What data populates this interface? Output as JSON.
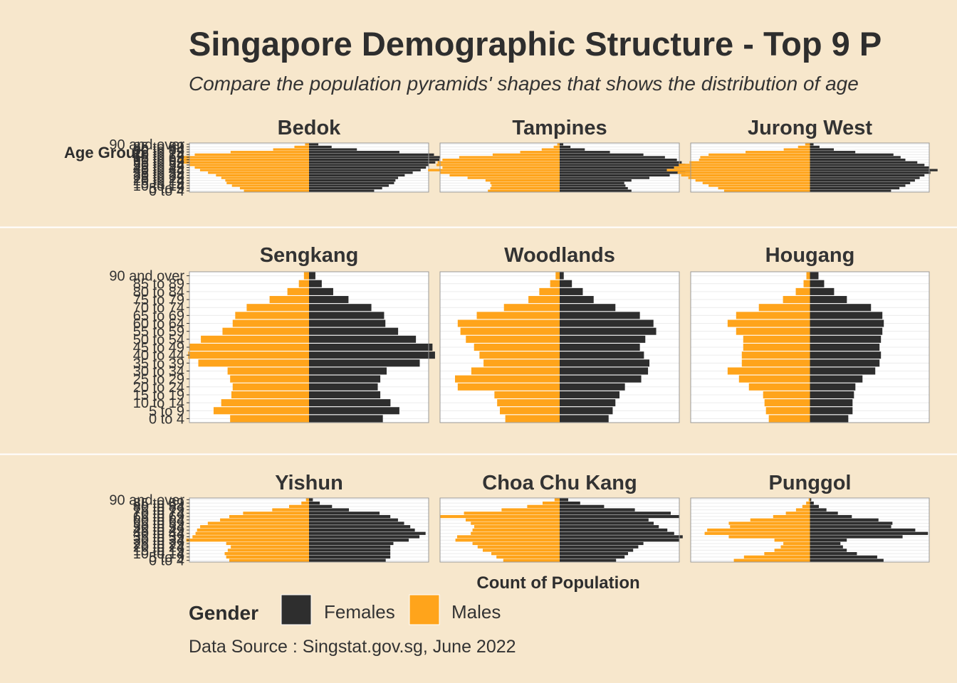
{
  "chart_data": {
    "type": "bar",
    "orientation": "horizontal",
    "subtype": "population-pyramid-facets",
    "title": "Singapore Demographic Structure - Top 9 P",
    "subtitle": "Compare the population pyramids' shapes that shows the distribution of age",
    "ylabel": "Age Group",
    "xlabel": "Count of Population",
    "legend": {
      "title": "Gender",
      "placement": "bottom-left",
      "items": [
        {
          "name": "Females",
          "color": "#2e2e2e"
        },
        {
          "name": "Males",
          "color": "#ffa41b"
        }
      ]
    },
    "caption": "Data Source : Singstat.gov.sg, June 2022",
    "grid": true,
    "categories": [
      "0 to 4",
      "5 to 9",
      "10 to 14",
      "15 to 19",
      "20 to 24",
      "25 to 29",
      "30 to 34",
      "35 to 39",
      "40 to 44",
      "45 to 49",
      "50 to 54",
      "55 to 59",
      "60 to 64",
      "65 to 69",
      "70 to 74",
      "75 to 79",
      "80 to 84",
      "85 to 89",
      "90 and over"
    ],
    "facets": [
      {
        "name": "Bedok",
        "xlim": [
          -9000,
          9000
        ],
        "females": [
          4900,
          5500,
          6000,
          6400,
          6500,
          6700,
          7200,
          7800,
          8400,
          8800,
          9000,
          9500,
          9800,
          10100,
          9400,
          6800,
          3600,
          1700,
          700
        ],
        "males": [
          4900,
          5200,
          5800,
          6200,
          6300,
          6600,
          7000,
          7600,
          8200,
          8600,
          9000,
          9500,
          9700,
          9600,
          8600,
          5900,
          2700,
          1100,
          300
        ]
      },
      {
        "name": "Tampines",
        "xlim": [
          -10000,
          10000
        ],
        "females": [
          6000,
          5700,
          5500,
          5400,
          6000,
          7500,
          9200,
          10500,
          11200,
          10000,
          10500,
          10200,
          9800,
          8800,
          7000,
          4200,
          2100,
          900,
          300
        ],
        "males": [
          6000,
          5800,
          5700,
          5800,
          6200,
          7700,
          9200,
          10000,
          11000,
          9800,
          10300,
          10200,
          9800,
          8400,
          5600,
          3300,
          1500,
          500,
          200
        ]
      },
      {
        "name": "Jurong West",
        "xlim": [
          -10000,
          10000
        ],
        "females": [
          6800,
          7500,
          8000,
          8400,
          8800,
          9200,
          9600,
          10100,
          10700,
          10000,
          9600,
          9000,
          8000,
          7600,
          7000,
          3800,
          2000,
          800,
          300
        ],
        "males": [
          7200,
          7700,
          8500,
          9000,
          9600,
          10200,
          10800,
          11100,
          12000,
          11400,
          11000,
          10100,
          9300,
          9200,
          8500,
          5400,
          2200,
          1000,
          400
        ]
      },
      {
        "name": "Sengkang",
        "xlim": [
          -9400,
          9400
        ],
        "females": [
          5800,
          7100,
          6400,
          5600,
          5400,
          5600,
          6100,
          8700,
          9900,
          9700,
          8400,
          7000,
          6000,
          5900,
          4900,
          3100,
          1900,
          1000,
          500
        ],
        "males": [
          6200,
          7500,
          6900,
          6100,
          6000,
          6200,
          6400,
          8700,
          9500,
          9400,
          8500,
          6800,
          6000,
          5800,
          4900,
          3100,
          1700,
          800,
          400
        ]
      },
      {
        "name": "Woodlands",
        "xlim": [
          -8800,
          8800
        ],
        "females": [
          3600,
          3900,
          4100,
          4400,
          4800,
          6000,
          6500,
          6600,
          6200,
          5900,
          6300,
          7100,
          6900,
          5900,
          4100,
          2500,
          1700,
          900,
          300
        ],
        "males": [
          4000,
          4400,
          4600,
          4800,
          7500,
          7700,
          6500,
          5600,
          5900,
          6300,
          6900,
          7300,
          7500,
          6100,
          4100,
          2300,
          1500,
          700,
          300
        ]
      },
      {
        "name": "Hougang",
        "xlim": [
          -8400,
          8400
        ],
        "females": [
          2700,
          3000,
          3000,
          3100,
          3200,
          3700,
          4600,
          4900,
          5000,
          4900,
          5000,
          5100,
          5200,
          5100,
          4300,
          2600,
          1700,
          1000,
          600
        ],
        "males": [
          2900,
          3100,
          3200,
          3300,
          4300,
          5000,
          5800,
          4800,
          4800,
          4700,
          4700,
          5200,
          5800,
          5200,
          3600,
          1900,
          1000,
          450,
          250
        ]
      },
      {
        "name": "Yishun",
        "xlim": [
          -7800,
          7800
        ],
        "females": [
          5000,
          5300,
          5300,
          5300,
          5300,
          5500,
          6500,
          7200,
          7600,
          6900,
          6600,
          6200,
          5800,
          5300,
          4600,
          2600,
          1500,
          700,
          250
        ],
        "males": [
          5200,
          5400,
          5500,
          5300,
          5100,
          5400,
          8000,
          7600,
          7400,
          7300,
          7100,
          6600,
          5800,
          5200,
          4300,
          2400,
          1300,
          500,
          200
        ]
      },
      {
        "name": "Choa Chu Kang",
        "xlim": [
          -7000,
          7000
        ],
        "females": [
          3300,
          3800,
          4000,
          4300,
          4600,
          4900,
          7000,
          7200,
          6700,
          6300,
          5800,
          5500,
          5200,
          7000,
          6500,
          4400,
          2600,
          1200,
          500
        ],
        "males": [
          3300,
          3700,
          4000,
          4500,
          4800,
          5100,
          6100,
          6000,
          5200,
          5100,
          5000,
          5200,
          5500,
          7000,
          5600,
          3400,
          1900,
          1000,
          300
        ]
      },
      {
        "name": "Punggol",
        "xlim": [
          -9400,
          9400
        ],
        "females": [
          5800,
          5300,
          3700,
          2900,
          2600,
          2400,
          2900,
          7300,
          9300,
          8300,
          6400,
          6500,
          5400,
          3300,
          2200,
          1300,
          700,
          300,
          100
        ],
        "males": [
          6000,
          5200,
          3600,
          2800,
          2300,
          2100,
          2800,
          6400,
          8300,
          8100,
          6300,
          6400,
          4700,
          2900,
          1900,
          1100,
          600,
          300,
          100
        ]
      }
    ]
  }
}
